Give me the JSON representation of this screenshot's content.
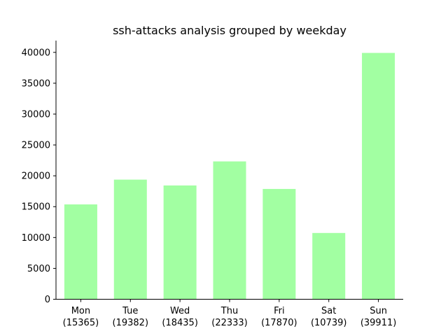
{
  "chart_data": {
    "type": "bar",
    "title": "ssh-attacks analysis grouped by weekday",
    "xlabel": "",
    "ylabel": "",
    "categories": [
      "Mon",
      "Tue",
      "Wed",
      "Thu",
      "Fri",
      "Sat",
      "Sun"
    ],
    "category_labels": [
      "(15365)",
      "(19382)",
      "(18435)",
      "(22333)",
      "(17870)",
      "(10739)",
      "(39911)"
    ],
    "values": [
      15365,
      19382,
      18435,
      22333,
      17870,
      10739,
      39911
    ],
    "ylim": [
      0,
      41906
    ],
    "yticks": [
      0,
      5000,
      10000,
      15000,
      20000,
      25000,
      30000,
      35000,
      40000
    ],
    "ytick_labels": [
      "0",
      "5000",
      "10000",
      "15000",
      "20000",
      "25000",
      "30000",
      "35000",
      "40000"
    ],
    "grid": false,
    "bar_color": "#a2ffa2"
  }
}
